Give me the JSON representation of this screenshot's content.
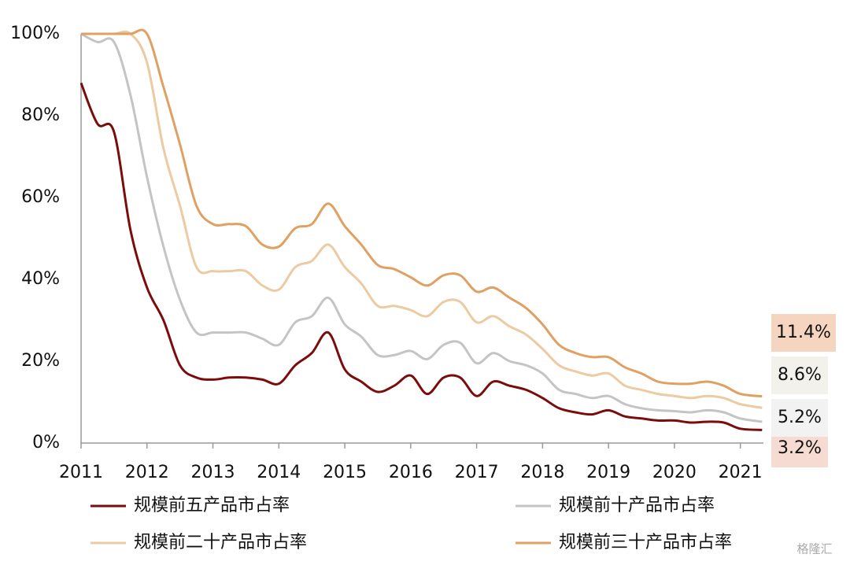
{
  "chart_data": {
    "type": "line",
    "x": [
      2011,
      2011.25,
      2011.5,
      2011.75,
      2012,
      2012.25,
      2012.5,
      2012.75,
      2013,
      2013.25,
      2013.5,
      2013.75,
      2014,
      2014.25,
      2014.5,
      2014.75,
      2015,
      2015.25,
      2015.5,
      2015.75,
      2016,
      2016.25,
      2016.5,
      2016.75,
      2017,
      2017.25,
      2017.5,
      2017.75,
      2018,
      2018.25,
      2018.5,
      2018.75,
      2019,
      2019.25,
      2019.5,
      2019.75,
      2020,
      2020.25,
      2020.5,
      2020.75,
      2021,
      2021.33
    ],
    "series": [
      {
        "name": "规模前五产品市占率",
        "color": "#7b0c0c",
        "end_label": "3.2%",
        "values": [
          88,
          78,
          76,
          52,
          38,
          30,
          19,
          16,
          15.5,
          16,
          16,
          15.5,
          14.5,
          19,
          22,
          27,
          18,
          15,
          12.5,
          14,
          16.5,
          12,
          16,
          16,
          11.5,
          15,
          14,
          13,
          11,
          8.5,
          7.5,
          7,
          8,
          6.5,
          6,
          5.5,
          5.5,
          5,
          5.2,
          5,
          3.5,
          3.2
        ]
      },
      {
        "name": "规模前十产品市占率",
        "color": "#c4c4c4",
        "end_label": "5.2%",
        "values": [
          100,
          98,
          98,
          85,
          65,
          48,
          35,
          27,
          27,
          27,
          27,
          25.5,
          24,
          29.5,
          31,
          35.5,
          29,
          26,
          21.5,
          21.5,
          22.5,
          20.5,
          24,
          24.5,
          19.5,
          22,
          20,
          19,
          17,
          13,
          12,
          11,
          11.5,
          9.5,
          8.5,
          8,
          7.8,
          7.5,
          8,
          7.5,
          6,
          5.2
        ]
      },
      {
        "name": "规模前二十产品市占率",
        "color": "#eccaa2",
        "end_label": "8.6%",
        "values": [
          100,
          100,
          100,
          100,
          93,
          72,
          58,
          43,
          42,
          42,
          42,
          38.5,
          37.5,
          43,
          44.5,
          48.5,
          43,
          39,
          33.5,
          33.5,
          32.5,
          31,
          34.5,
          34.5,
          29.5,
          31,
          28.5,
          26.5,
          23,
          19,
          17.5,
          16.5,
          17,
          14,
          13,
          12,
          11.5,
          11,
          11.5,
          11,
          9.5,
          8.6
        ]
      },
      {
        "name": "规模前三十产品市占率",
        "color": "#e0a062",
        "end_label": "11.4%",
        "values": [
          100,
          100,
          100,
          100,
          100,
          87,
          73,
          58,
          53.5,
          53.5,
          53,
          48.5,
          48,
          52.5,
          53.5,
          58.5,
          53,
          48.5,
          43.5,
          42.5,
          40.5,
          38.5,
          41,
          41,
          37,
          38,
          35.5,
          33,
          29,
          24,
          22,
          21,
          21,
          18.5,
          17,
          15,
          14.5,
          14.5,
          15,
          14,
          12,
          11.4
        ]
      }
    ],
    "xlim": [
      2011,
      2021.35
    ],
    "xticks": [
      2011,
      2012,
      2013,
      2014,
      2015,
      2016,
      2017,
      2018,
      2019,
      2020,
      2021
    ],
    "ylim": [
      0,
      100
    ],
    "yticks": [
      {
        "value": 0,
        "label": "0%"
      },
      {
        "value": 20,
        "label": "20%"
      },
      {
        "value": 40,
        "label": "40%"
      },
      {
        "value": 60,
        "label": "60%"
      },
      {
        "value": 80,
        "label": "80%"
      },
      {
        "value": 100,
        "label": "100%"
      }
    ],
    "watermark": "格隆汇"
  }
}
